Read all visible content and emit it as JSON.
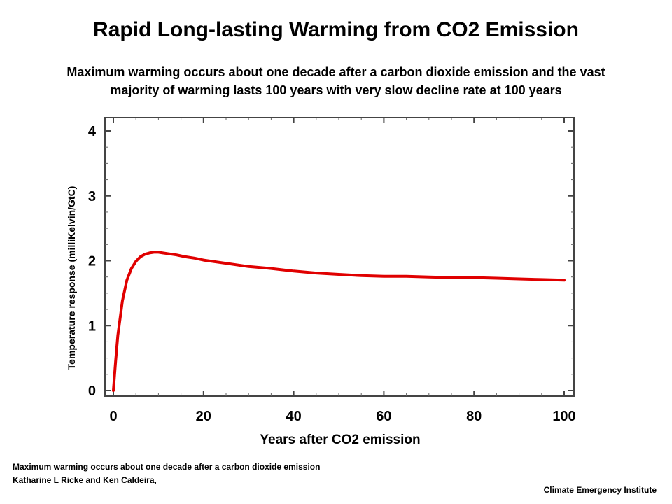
{
  "header": {
    "title": "Rapid Long-lasting Warming from CO2 Emission",
    "subtitle_line1": "Maximum warming occurs about one decade after a carbon dioxide emission and the vast",
    "subtitle_line2": "majority of warming lasts 100 years  with very slow decline rate at 100 years"
  },
  "footer": {
    "caption_line1": "Maximum warming occurs about one decade after a carbon dioxide emission",
    "caption_line2": "Katharine L Ricke and Ken Caldeira,",
    "credit": "Climate Emergency Institute"
  },
  "chart_data": {
    "type": "line",
    "title": "",
    "xlabel": "Years after CO2 emission",
    "ylabel": "Temperature response (milliKelvin/GtC)",
    "xlim": [
      0,
      100
    ],
    "ylim": [
      0,
      4
    ],
    "xticks": [
      0,
      20,
      40,
      60,
      80,
      100
    ],
    "yticks": [
      0,
      1,
      2,
      3,
      4
    ],
    "grid": false,
    "line_color": "#e00000",
    "series": [
      {
        "x": [
          0,
          0.5,
          1,
          2,
          3,
          4,
          5,
          6,
          7,
          8,
          9,
          10,
          11,
          12,
          14,
          16,
          18,
          20,
          25,
          30,
          35,
          40,
          45,
          50,
          55,
          60,
          65,
          70,
          75,
          80,
          85,
          90,
          95,
          100
        ],
        "values": [
          0.0,
          0.45,
          0.85,
          1.38,
          1.7,
          1.88,
          1.99,
          2.06,
          2.1,
          2.12,
          2.13,
          2.13,
          2.12,
          2.11,
          2.09,
          2.06,
          2.04,
          2.01,
          1.96,
          1.91,
          1.88,
          1.84,
          1.81,
          1.79,
          1.77,
          1.76,
          1.76,
          1.75,
          1.74,
          1.74,
          1.73,
          1.72,
          1.71,
          1.7
        ]
      }
    ]
  }
}
